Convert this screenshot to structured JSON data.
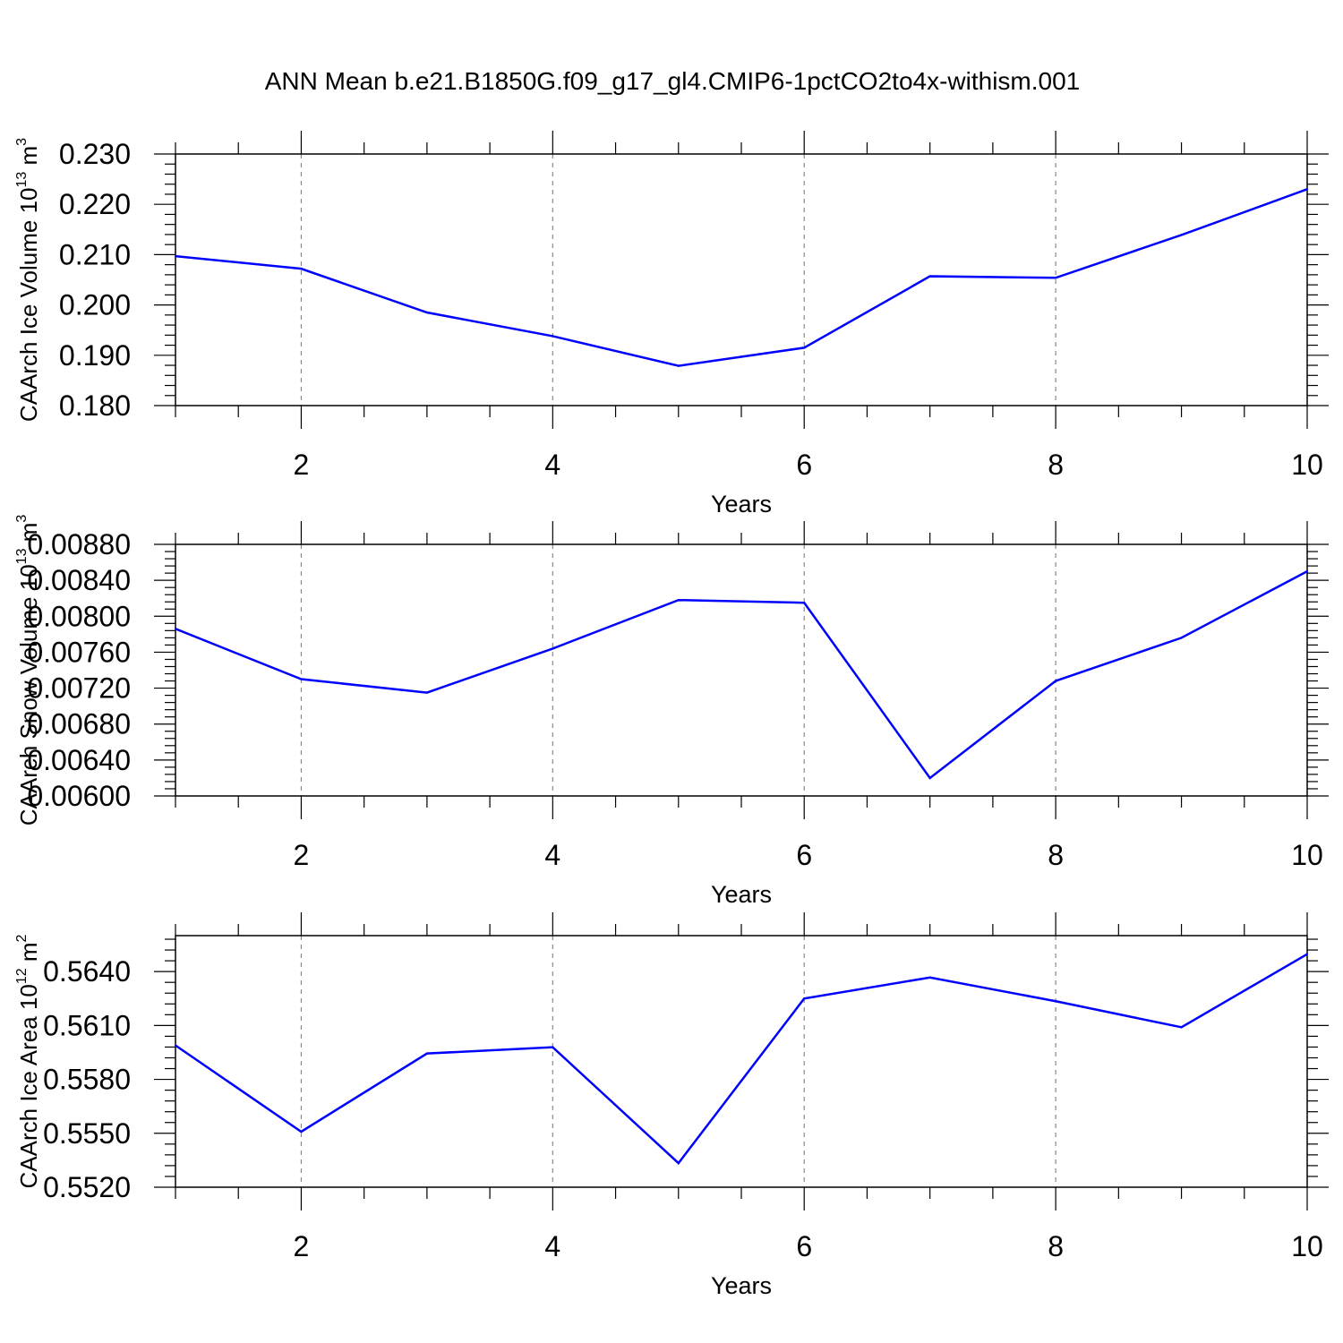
{
  "title": "ANN Mean b.e21.B1850G.f09_g17_gl4.CMIP6-1pctCO2to4x-withism.001",
  "colors": {
    "line": "#0000ff",
    "axis": "#000000",
    "grid": "#888888"
  },
  "chart_data": [
    {
      "type": "line",
      "ylabel": {
        "text": "CAArch Ice Volume 10",
        "exp": "13",
        "unit": " m",
        "unit_exp": "3"
      },
      "xlabel": "Years",
      "xlim": [
        1,
        10
      ],
      "ylim": [
        0.18,
        0.23
      ],
      "x_ticks": [
        2,
        4,
        6,
        8,
        10
      ],
      "y_ticks": [
        "0.180",
        "0.190",
        "0.200",
        "0.210",
        "0.220",
        "0.230"
      ],
      "grid": "x dashed",
      "x": [
        1,
        2,
        3,
        4,
        5,
        6,
        7,
        8,
        9,
        10
      ],
      "series": [
        {
          "values": [
            0.2097,
            0.2072,
            0.1985,
            0.1938,
            0.1879,
            0.1915,
            0.2057,
            0.2054,
            0.2139,
            0.223
          ]
        }
      ]
    },
    {
      "type": "line",
      "ylabel": {
        "text": "CAArch Snow Volume 10",
        "exp": "13",
        "unit": " m",
        "unit_exp": "3"
      },
      "xlabel": "Years",
      "xlim": [
        1,
        10
      ],
      "ylim": [
        0.006,
        0.0088
      ],
      "x_ticks": [
        2,
        4,
        6,
        8,
        10
      ],
      "y_ticks": [
        "0.00600",
        "0.00640",
        "0.00680",
        "0.00720",
        "0.00760",
        "0.00800",
        "0.00840",
        "0.00880"
      ],
      "grid": "x dashed",
      "x": [
        1,
        2,
        3,
        4,
        5,
        6,
        7,
        8,
        9,
        10
      ],
      "series": [
        {
          "values": [
            0.00786,
            0.0073,
            0.00715,
            0.00764,
            0.00818,
            0.00815,
            0.0062,
            0.00728,
            0.00776,
            0.0085
          ]
        }
      ]
    },
    {
      "type": "line",
      "ylabel": {
        "text": "CAArch Ice Area 10",
        "exp": "12",
        "unit": " m",
        "unit_exp": "2"
      },
      "xlabel": "Years",
      "xlim": [
        1,
        10
      ],
      "ylim": [
        0.552,
        0.566
      ],
      "x_ticks": [
        2,
        4,
        6,
        8,
        10
      ],
      "y_ticks": [
        "0.5520",
        "0.5550",
        "0.5580",
        "0.5610",
        "0.5640"
      ],
      "grid": "x dashed",
      "x": [
        1,
        2,
        3,
        4,
        5,
        6,
        7,
        8,
        9,
        10
      ],
      "series": [
        {
          "values": [
            0.55989,
            0.55509,
            0.55944,
            0.55979,
            0.55334,
            0.5625,
            0.56367,
            0.56235,
            0.5609,
            0.56497
          ]
        }
      ]
    }
  ]
}
